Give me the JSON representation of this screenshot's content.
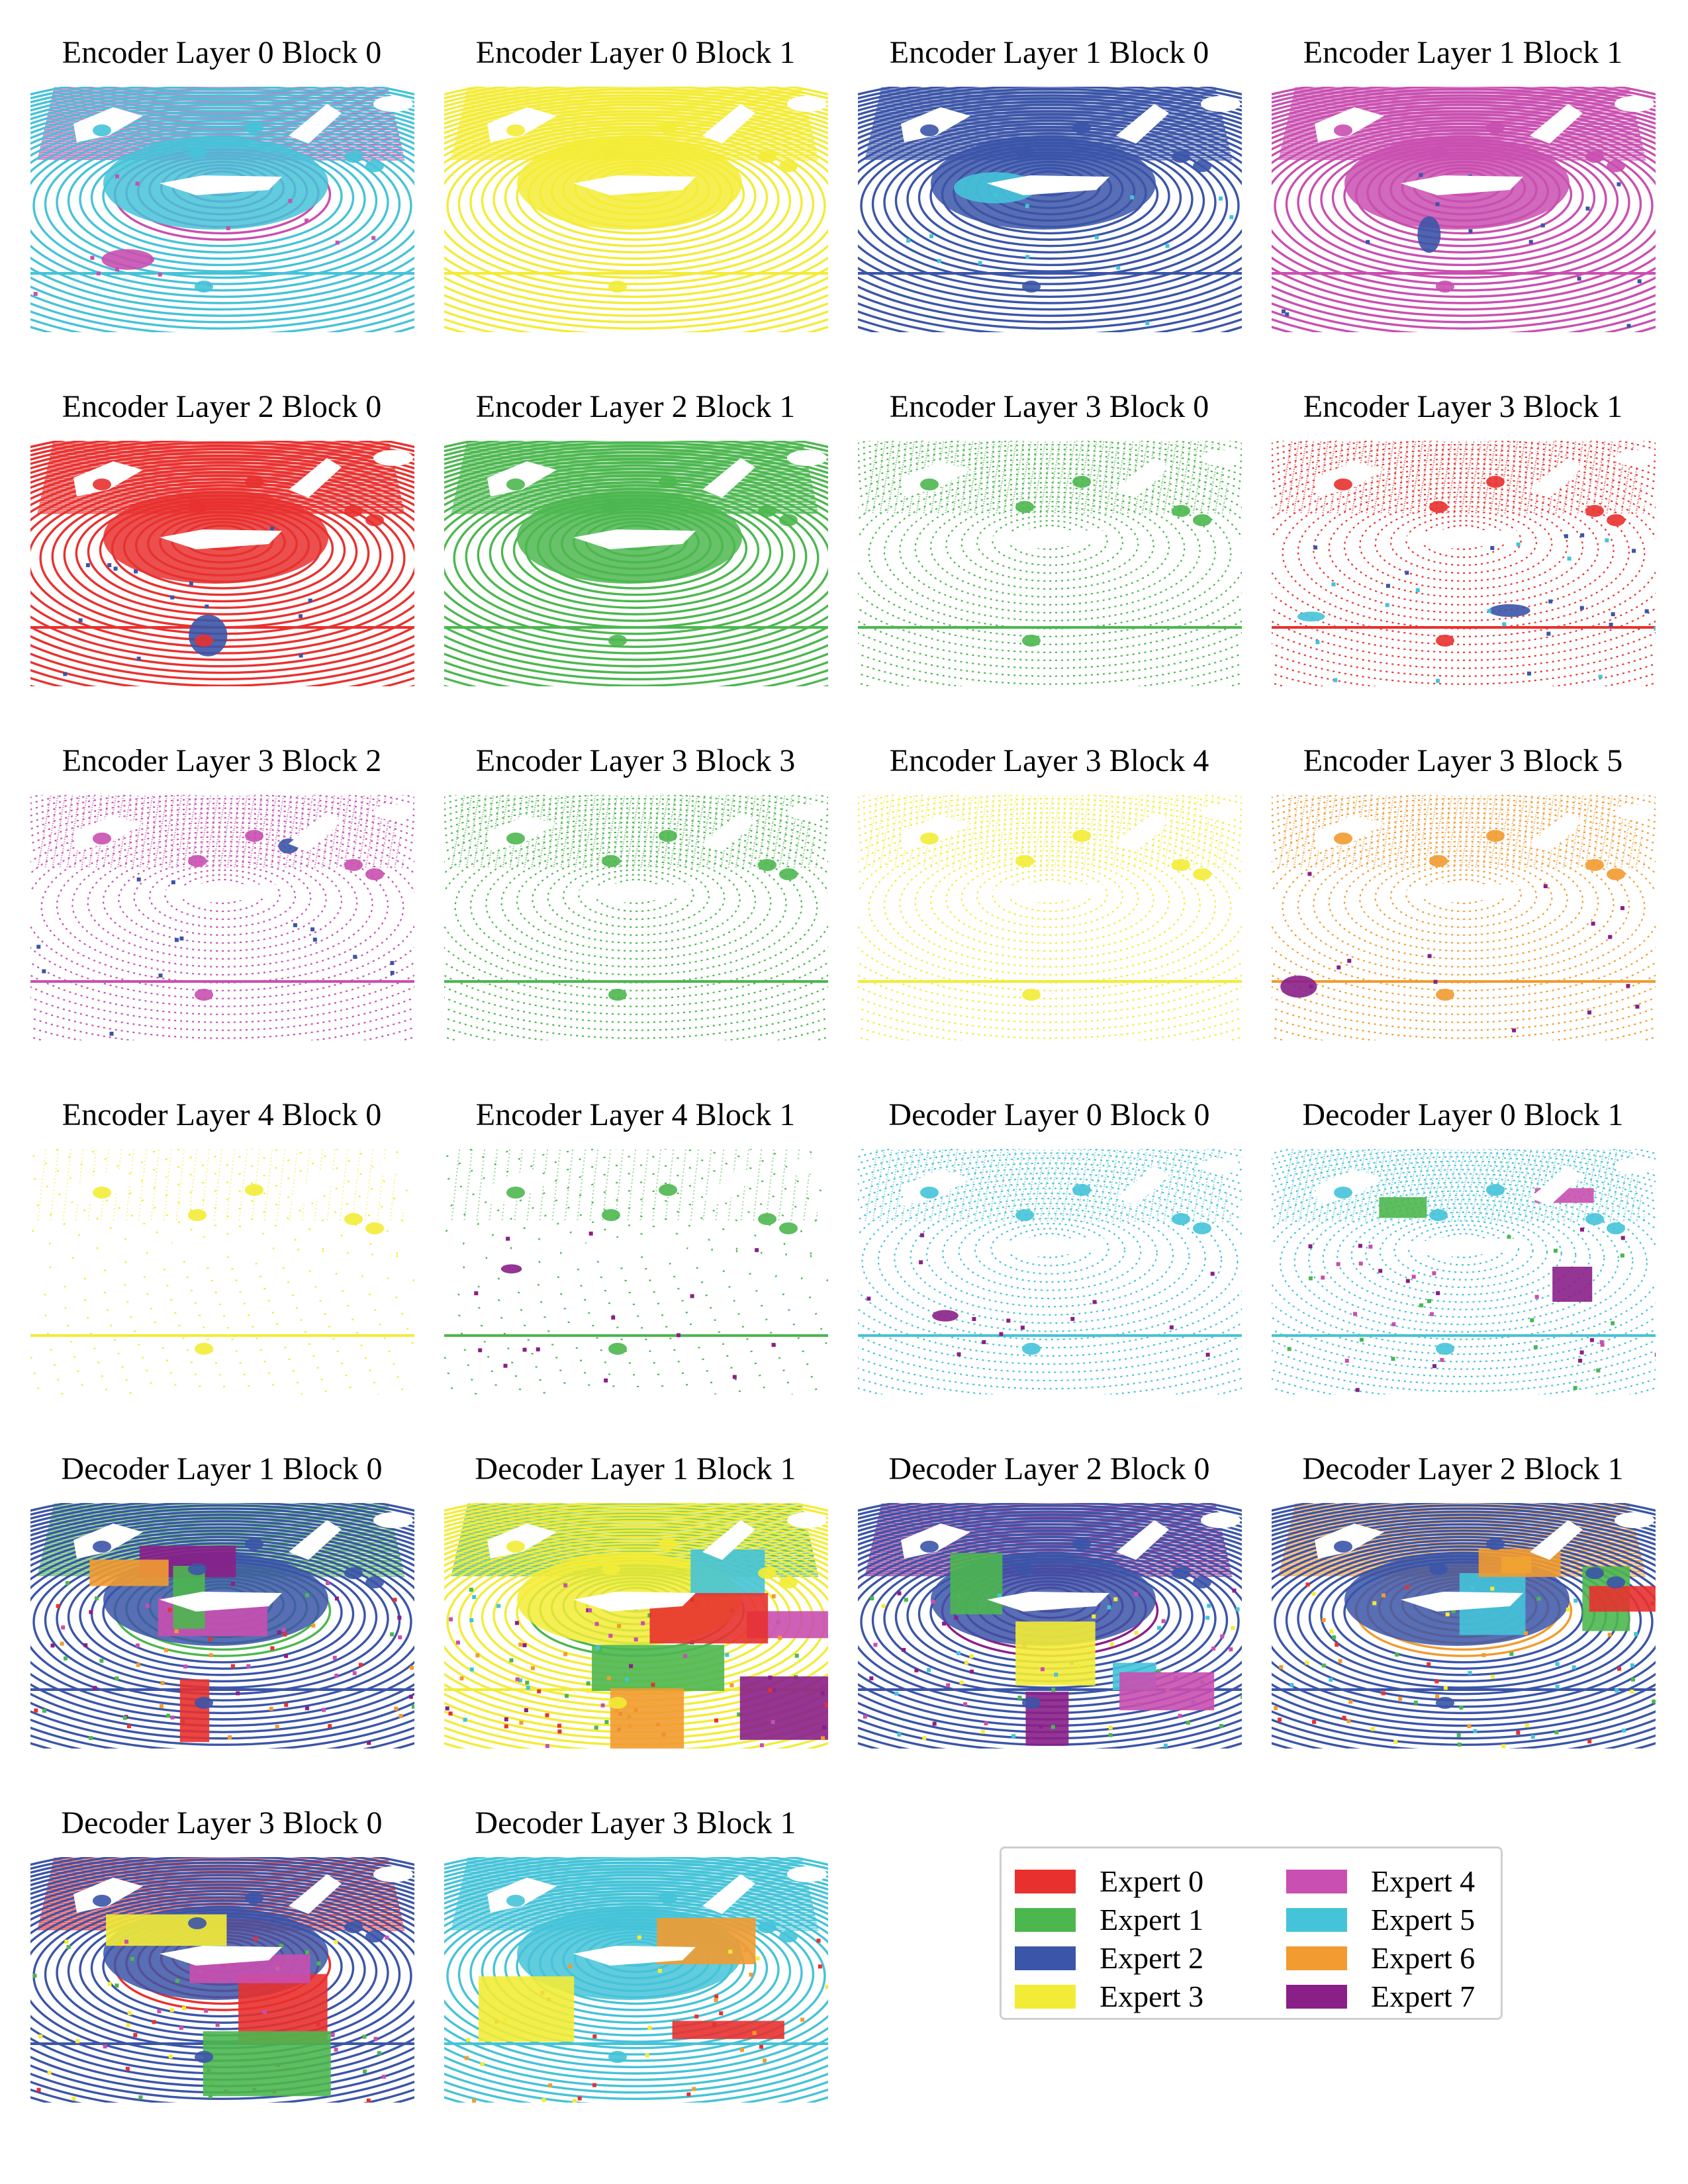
{
  "colors": {
    "expert_0": "#e8312f",
    "expert_1": "#4cb74f",
    "expert_2": "#3b55a8",
    "expert_3": "#f3ec36",
    "expert_4": "#c94fb0",
    "expert_5": "#45c3d8",
    "expert_6": "#f29b30",
    "expert_7": "#8a1f88"
  },
  "legend": [
    {
      "label": "Expert 0",
      "color": "#e8312f"
    },
    {
      "label": "Expert 1",
      "color": "#4cb74f"
    },
    {
      "label": "Expert 2",
      "color": "#3b55a8"
    },
    {
      "label": "Expert 3",
      "color": "#f3ec36"
    },
    {
      "label": "Expert 4",
      "color": "#c94fb0"
    },
    {
      "label": "Expert 5",
      "color": "#45c3d8"
    },
    {
      "label": "Expert 6",
      "color": "#f29b30"
    },
    {
      "label": "Expert 7",
      "color": "#8a1f88"
    }
  ],
  "panels": [
    {
      "title": "Encoder Layer 0 Block 0",
      "density": 1.0,
      "base": "expert_5",
      "top": "expert_4",
      "extras": [
        "expert_4"
      ]
    },
    {
      "title": "Encoder Layer 0 Block 1",
      "density": 1.0,
      "base": "expert_3",
      "top": "expert_3",
      "extras": []
    },
    {
      "title": "Encoder Layer 1 Block 0",
      "density": 1.0,
      "base": "expert_2",
      "top": "expert_2",
      "extras": [
        "expert_5"
      ]
    },
    {
      "title": "Encoder Layer 1 Block 1",
      "density": 1.0,
      "base": "expert_4",
      "top": "expert_4",
      "extras": [
        "expert_2"
      ]
    },
    {
      "title": "Encoder Layer 2 Block 0",
      "density": 0.95,
      "base": "expert_0",
      "top": "expert_0",
      "extras": [
        "expert_2"
      ]
    },
    {
      "title": "Encoder Layer 2 Block 1",
      "density": 0.95,
      "base": "expert_1",
      "top": "expert_1",
      "extras": []
    },
    {
      "title": "Encoder Layer 3 Block 0",
      "density": 0.7,
      "base": "expert_1",
      "top": "expert_1",
      "extras": []
    },
    {
      "title": "Encoder Layer 3 Block 1",
      "density": 0.7,
      "base": "expert_0",
      "top": "expert_0",
      "extras": [
        "expert_2",
        "expert_5"
      ]
    },
    {
      "title": "Encoder Layer 3 Block 2",
      "density": 0.7,
      "base": "expert_4",
      "top": "expert_4",
      "extras": [
        "expert_2"
      ]
    },
    {
      "title": "Encoder Layer 3 Block 3",
      "density": 0.7,
      "base": "expert_1",
      "top": "expert_1",
      "extras": []
    },
    {
      "title": "Encoder Layer 3 Block 4",
      "density": 0.7,
      "base": "expert_3",
      "top": "expert_3",
      "extras": []
    },
    {
      "title": "Encoder Layer 3 Block 5",
      "density": 0.7,
      "base": "expert_6",
      "top": "expert_6",
      "extras": [
        "expert_7"
      ]
    },
    {
      "title": "Encoder Layer 4 Block 0",
      "density": 0.35,
      "base": "expert_3",
      "top": "expert_3",
      "extras": []
    },
    {
      "title": "Encoder Layer 4 Block 1",
      "density": 0.35,
      "base": "expert_1",
      "top": "expert_1",
      "extras": [
        "expert_7"
      ]
    },
    {
      "title": "Decoder Layer 0 Block 0",
      "density": 0.65,
      "base": "expert_5",
      "top": "expert_5",
      "extras": [
        "expert_7"
      ]
    },
    {
      "title": "Decoder Layer 0 Block 1",
      "density": 0.75,
      "base": "expert_5",
      "top": "expert_5",
      "extras": [
        "expert_1",
        "expert_4",
        "expert_7"
      ]
    },
    {
      "title": "Decoder Layer 1 Block 0",
      "density": 1.0,
      "base": "expert_2",
      "top": "expert_1",
      "extras": [
        "expert_4",
        "expert_7",
        "expert_1",
        "expert_6",
        "expert_0"
      ]
    },
    {
      "title": "Decoder Layer 1 Block 1",
      "density": 1.0,
      "base": "expert_3",
      "top": "expert_1",
      "extras": [
        "expert_1",
        "expert_5",
        "expert_7",
        "expert_4",
        "expert_0",
        "expert_6"
      ]
    },
    {
      "title": "Decoder Layer 2 Block 0",
      "density": 1.0,
      "base": "expert_2",
      "top": "expert_7",
      "extras": [
        "expert_7",
        "expert_1",
        "expert_3",
        "expert_5",
        "expert_4"
      ]
    },
    {
      "title": "Decoder Layer 2 Block 1",
      "density": 1.0,
      "base": "expert_2",
      "top": "expert_6",
      "extras": [
        "expert_5",
        "expert_3",
        "expert_1",
        "expert_6",
        "expert_0"
      ]
    },
    {
      "title": "Decoder Layer 3 Block 0",
      "density": 1.0,
      "base": "expert_2",
      "top": "expert_0",
      "extras": [
        "expert_0",
        "expert_3",
        "expert_1",
        "expert_4"
      ]
    },
    {
      "title": "Decoder Layer 3 Block 1",
      "density": 1.0,
      "base": "expert_5",
      "top": "expert_5",
      "extras": [
        "expert_0",
        "expert_6",
        "expert_3"
      ]
    }
  ]
}
